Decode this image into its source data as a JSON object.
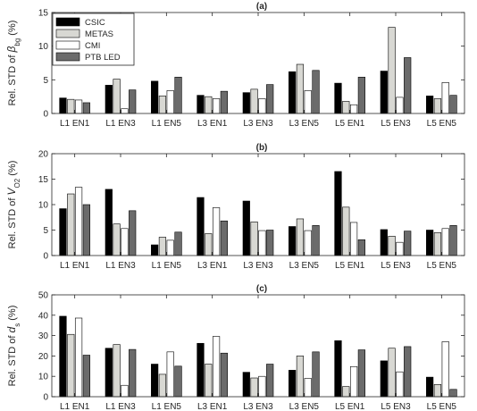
{
  "chart_data": [
    {
      "type": "bar",
      "panel_label": "(a)",
      "ylabel": "Rel. STD of β_bg (%)",
      "ylabel_prefix": "Rel. STD of ",
      "ylabel_symbol": "β",
      "ylabel_subscript": "bg",
      "ylabel_suffix": " (%)",
      "ylim": [
        0,
        15
      ],
      "yticks": [
        0,
        5,
        10,
        15
      ],
      "grid": false,
      "legend_position": "top-left",
      "categories": [
        "L1 EN1",
        "L1 EN3",
        "L1 EN5",
        "L3 EN1",
        "L3 EN3",
        "L3 EN5",
        "L5 EN1",
        "L5 EN3",
        "L5 EN5"
      ],
      "series": [
        {
          "name": "CSIC",
          "values": [
            2.3,
            4.2,
            4.8,
            2.7,
            3.1,
            6.2,
            4.5,
            6.3,
            2.6
          ]
        },
        {
          "name": "METAS",
          "values": [
            2.1,
            5.1,
            2.6,
            2.5,
            3.6,
            7.3,
            1.8,
            12.8,
            2.2
          ]
        },
        {
          "name": "CMI",
          "values": [
            2.0,
            0.7,
            3.4,
            2.2,
            2.2,
            3.4,
            1.3,
            2.4,
            4.6
          ]
        },
        {
          "name": "PTB LED",
          "values": [
            1.6,
            3.5,
            5.4,
            3.3,
            4.3,
            6.4,
            5.4,
            8.3,
            2.7
          ]
        }
      ]
    },
    {
      "type": "bar",
      "panel_label": "(b)",
      "ylabel": "Rel. STD of V_O2 (%)",
      "ylabel_prefix": "Rel. STD of ",
      "ylabel_symbol": "V",
      "ylabel_subscript": "O2",
      "ylabel_suffix": " (%)",
      "ylim": [
        0,
        20
      ],
      "yticks": [
        0,
        5,
        10,
        15,
        20
      ],
      "grid": false,
      "categories": [
        "L1 EN1",
        "L1 EN3",
        "L1 EN5",
        "L3 EN1",
        "L3 EN3",
        "L3 EN5",
        "L5 EN1",
        "L5 EN3",
        "L5 EN5"
      ],
      "series": [
        {
          "name": "CSIC",
          "values": [
            9.2,
            13.0,
            2.1,
            11.4,
            10.7,
            5.7,
            16.5,
            5.1,
            5.0
          ]
        },
        {
          "name": "METAS",
          "values": [
            12.1,
            6.2,
            3.6,
            4.3,
            6.6,
            7.2,
            9.5,
            3.8,
            4.5
          ]
        },
        {
          "name": "CMI",
          "values": [
            13.4,
            5.3,
            3.0,
            9.4,
            4.9,
            4.9,
            6.5,
            2.6,
            5.3
          ]
        },
        {
          "name": "PTB LED",
          "values": [
            10.0,
            8.8,
            4.6,
            6.8,
            5.0,
            5.9,
            3.1,
            4.8,
            5.9
          ]
        }
      ]
    },
    {
      "type": "bar",
      "panel_label": "(c)",
      "ylabel": "Rel. STD of d_s (%)",
      "ylabel_prefix": "Rel. STD of ",
      "ylabel_symbol": "d",
      "ylabel_subscript": "s",
      "ylabel_suffix": " (%)",
      "ylim": [
        0,
        50
      ],
      "yticks": [
        0,
        10,
        20,
        30,
        40,
        50
      ],
      "grid": false,
      "categories": [
        "L1 EN1",
        "L1 EN3",
        "L1 EN5",
        "L3 EN1",
        "L3 EN3",
        "L3 EN5",
        "L5 EN1",
        "L5 EN3",
        "L5 EN5"
      ],
      "series": [
        {
          "name": "CSIC",
          "values": [
            39.5,
            23.8,
            16.0,
            26.2,
            12.0,
            13.0,
            27.5,
            17.6,
            9.6
          ]
        },
        {
          "name": "METAS",
          "values": [
            30.6,
            25.6,
            11.0,
            16.0,
            9.2,
            20.0,
            5.0,
            23.8,
            6.0
          ]
        },
        {
          "name": "CMI",
          "values": [
            38.6,
            5.6,
            22.0,
            29.6,
            10.0,
            9.0,
            14.8,
            12.2,
            27.0
          ]
        },
        {
          "name": "PTB LED",
          "values": [
            20.4,
            23.2,
            15.0,
            21.4,
            16.0,
            22.0,
            23.0,
            24.6,
            3.6
          ]
        }
      ]
    }
  ],
  "series_colors": [
    "#000000",
    "#d8d8d3",
    "#ffffff",
    "#6b6b6b"
  ]
}
